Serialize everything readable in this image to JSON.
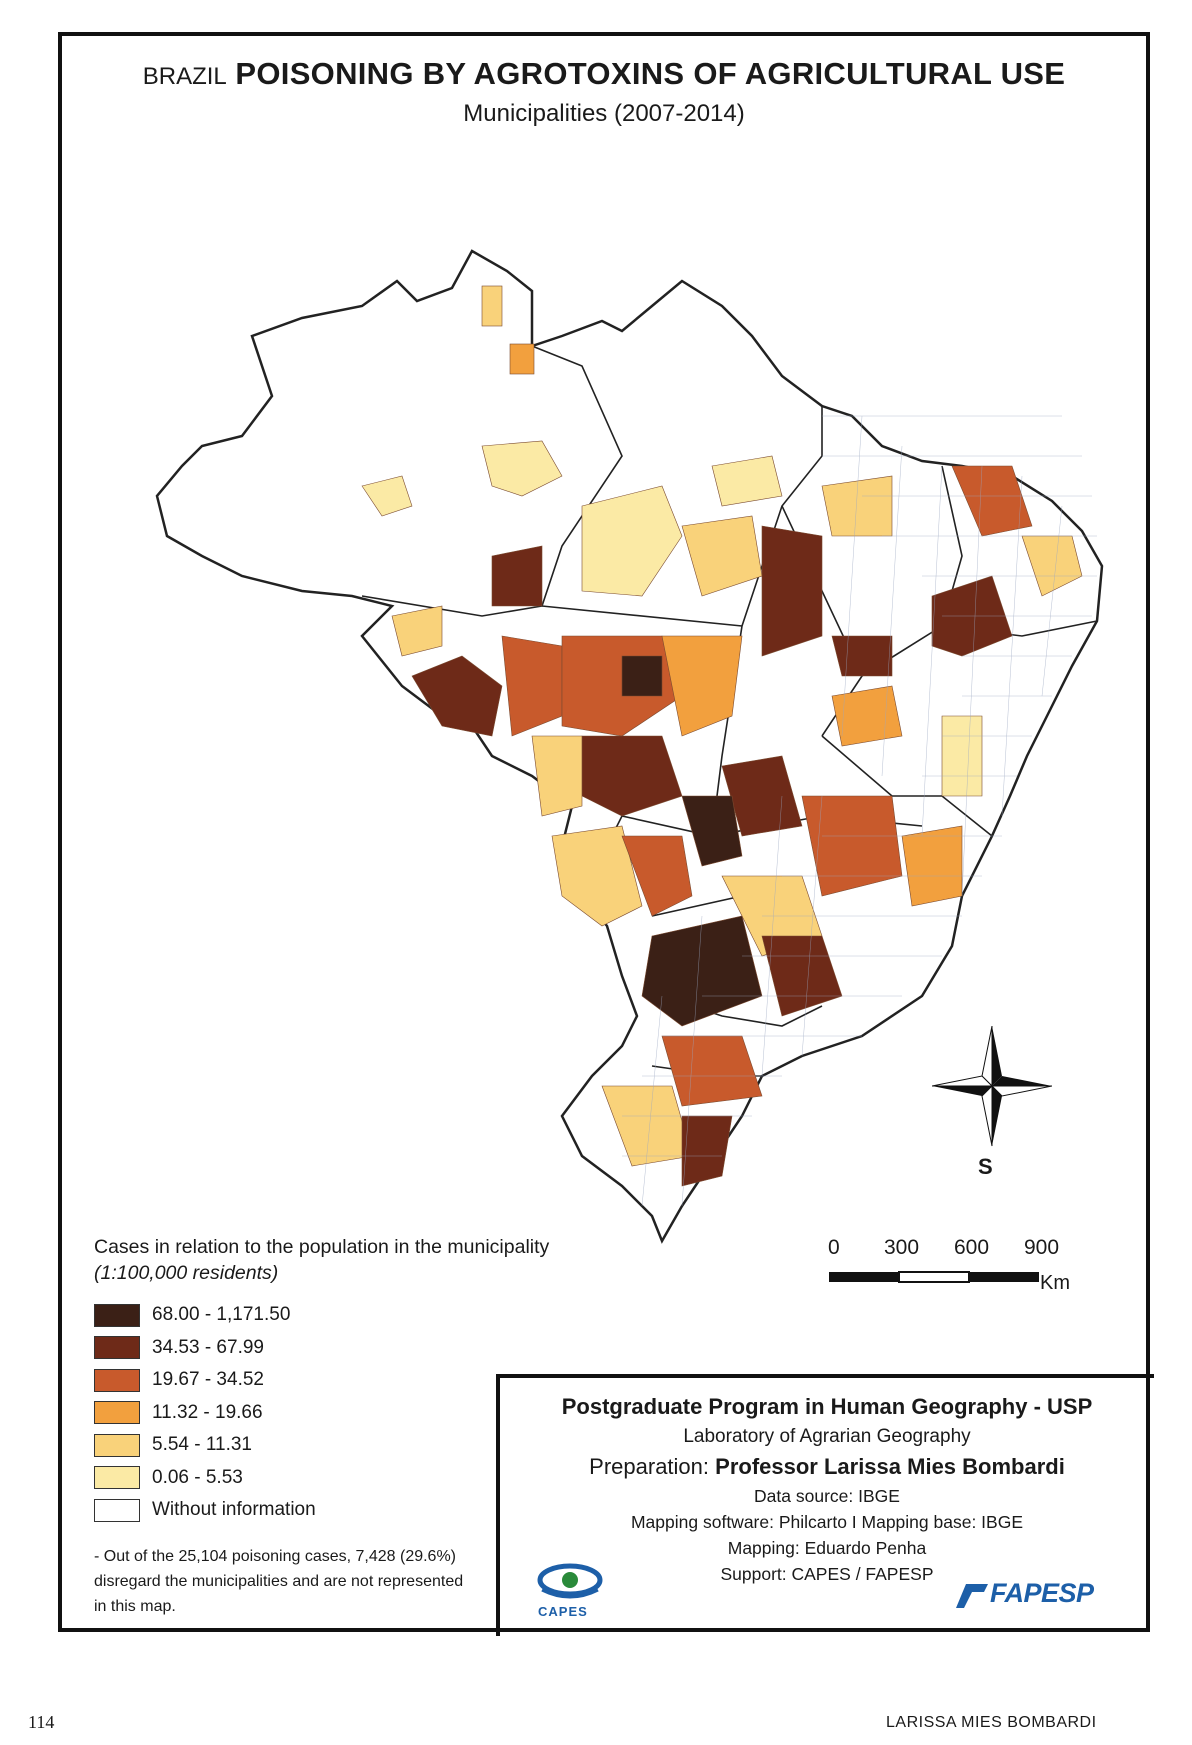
{
  "title": {
    "prefix": "BRAZIL",
    "main": "POISONING BY AGROTOXINS OF AGRICULTURAL USE",
    "subtitle": "Municipalities (2007-2014)"
  },
  "compass": {
    "label": "S"
  },
  "scale_bar": {
    "ticks": [
      "0",
      "300",
      "600",
      "900"
    ],
    "unit": "Km"
  },
  "legend": {
    "title": "Cases in relation to the population in the municipality",
    "unit": "(1:100,000 residents)",
    "classes": [
      {
        "label": "68.00 - 1,171.50",
        "color": "#3b2016"
      },
      {
        "label": "34.53 - 67.99",
        "color": "#6e2a18"
      },
      {
        "label": "19.67 - 34.52",
        "color": "#c85a2c"
      },
      {
        "label": "11.32 - 19.66",
        "color": "#f2a03e"
      },
      {
        "label": "5.54 - 11.31",
        "color": "#f9d27a"
      },
      {
        "label": "0.06 - 5.53",
        "color": "#fbeaa5"
      },
      {
        "label": "Without information",
        "color": "#ffffff"
      }
    ]
  },
  "note": "- Out of the 25,104 poisoning cases, 7,428 (29.6%) disregard the municipalities and are not represented in this map.",
  "credits": {
    "program": "Postgraduate Program in Human Geography - USP",
    "laboratory": "Laboratory of Agrarian Geography",
    "preparation_label": "Preparation:",
    "preparation_name": "Professor Larissa Mies Bombardi",
    "data_source": "Data source: IBGE",
    "software": "Mapping software: Philcarto I Mapping base: IBGE",
    "mapping": "Mapping: Eduardo Penha",
    "support": "Support: CAPES / FAPESP"
  },
  "logos": {
    "capes": "CAPES",
    "fapesp": "FAPESP"
  },
  "footer": {
    "page_number": "114",
    "running_head": "LARISSA MIES BOMBARDI"
  }
}
